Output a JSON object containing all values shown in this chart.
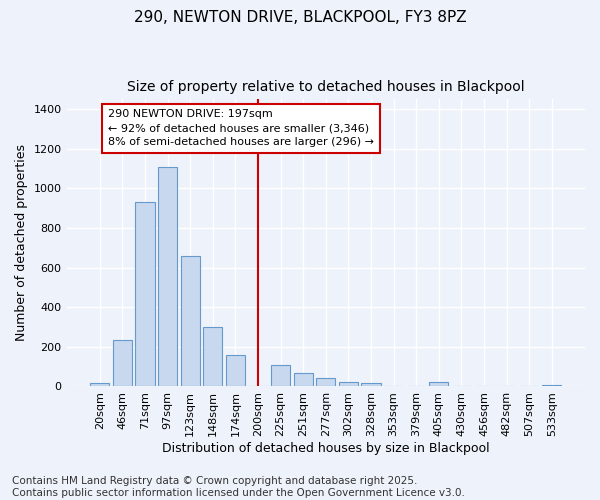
{
  "title": "290, NEWTON DRIVE, BLACKPOOL, FY3 8PZ",
  "subtitle": "Size of property relative to detached houses in Blackpool",
  "xlabel": "Distribution of detached houses by size in Blackpool",
  "ylabel": "Number of detached properties",
  "categories": [
    "20sqm",
    "46sqm",
    "71sqm",
    "97sqm",
    "123sqm",
    "148sqm",
    "174sqm",
    "200sqm",
    "225sqm",
    "251sqm",
    "277sqm",
    "302sqm",
    "328sqm",
    "353sqm",
    "379sqm",
    "405sqm",
    "430sqm",
    "456sqm",
    "482sqm",
    "507sqm",
    "533sqm"
  ],
  "values": [
    15,
    235,
    930,
    1110,
    660,
    300,
    160,
    0,
    110,
    70,
    45,
    20,
    15,
    0,
    0,
    20,
    0,
    0,
    0,
    0,
    5
  ],
  "bar_color": "#c8d8ee",
  "bar_edge_color": "#6699cc",
  "background_color": "#eef2fa",
  "plot_bg_color": "#eef2fa",
  "grid_color": "#ffffff",
  "vline_color": "#cc0000",
  "vline_x_index": 7,
  "annotation_text": "290 NEWTON DRIVE: 197sqm\n← 92% of detached houses are smaller (3,346)\n8% of semi-detached houses are larger (296) →",
  "annotation_box_color": "#cc0000",
  "ylim": [
    0,
    1450
  ],
  "yticks": [
    0,
    200,
    400,
    600,
    800,
    1000,
    1200,
    1400
  ],
  "footnote": "Contains HM Land Registry data © Crown copyright and database right 2025.\nContains public sector information licensed under the Open Government Licence v3.0.",
  "title_fontsize": 11,
  "subtitle_fontsize": 10,
  "xlabel_fontsize": 9,
  "ylabel_fontsize": 9,
  "tick_fontsize": 8,
  "annot_fontsize": 8,
  "footnote_fontsize": 7.5
}
